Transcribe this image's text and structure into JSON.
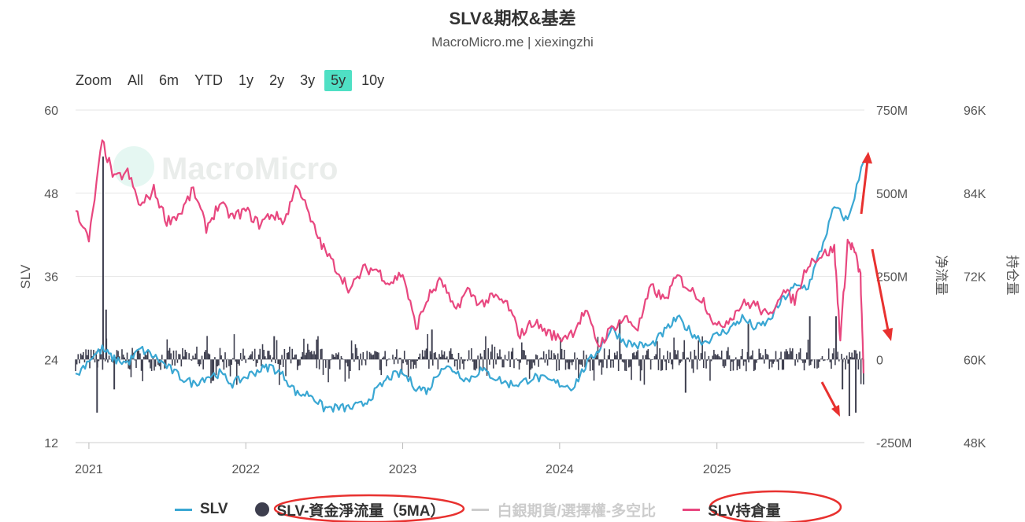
{
  "title": "SLV&期权&基差",
  "subtitle": "MacroMicro.me | xiexingzhi",
  "watermark": "MacroMicro",
  "zoom": {
    "label": "Zoom",
    "buttons": [
      "All",
      "6m",
      "YTD",
      "1y",
      "2y",
      "3y",
      "5y",
      "10y"
    ],
    "active": "5y"
  },
  "legend": [
    {
      "name": "SLV",
      "color": "#3aa7d3",
      "kind": "line",
      "visible": true
    },
    {
      "name": "SLV-資金淨流量（5MA）",
      "color": "#3d3e4e",
      "kind": "dot",
      "visible": true
    },
    {
      "name": "白銀期貨/選擇權-多空比",
      "color": "#cccccc",
      "kind": "line",
      "visible": false
    },
    {
      "name": "SLV持倉量",
      "color": "#e8477f",
      "kind": "line",
      "visible": true
    }
  ],
  "chart_data": {
    "type": "line",
    "x_labels": [
      "2021",
      "2022",
      "2023",
      "2024",
      "2025"
    ],
    "x_range": [
      "2020-12-01",
      "2025-12-10"
    ],
    "axes": {
      "slv": {
        "label": "SLV",
        "ticks": [
          "12",
          "24",
          "36",
          "48",
          "60"
        ],
        "range": [
          12,
          60
        ]
      },
      "flow": {
        "label": "净流量",
        "ticks": [
          "-250M",
          "0",
          "250M",
          "500M",
          "750M"
        ],
        "range": [
          -250,
          750
        ],
        "unit": "M"
      },
      "holdings": {
        "label": "持仓量",
        "ticks": [
          "48K",
          "60K",
          "72K",
          "84K",
          "96K"
        ],
        "range": [
          48,
          96
        ],
        "unit": "K"
      }
    },
    "grid": true,
    "legend_position": "bottom",
    "series": [
      {
        "name": "SLV",
        "axis": "slv",
        "color": "#3aa7d3",
        "x": [
          "2020-12-01",
          "2021-01-01",
          "2021-02-01",
          "2021-03-01",
          "2021-04-01",
          "2021-05-01",
          "2021-06-01",
          "2021-07-01",
          "2021-08-01",
          "2021-09-01",
          "2021-10-01",
          "2021-11-01",
          "2021-12-01",
          "2022-01-01",
          "2022-02-01",
          "2022-03-01",
          "2022-04-01",
          "2022-05-01",
          "2022-06-01",
          "2022-07-01",
          "2022-08-01",
          "2022-09-01",
          "2022-10-01",
          "2022-11-01",
          "2022-12-01",
          "2023-01-01",
          "2023-02-01",
          "2023-03-01",
          "2023-04-01",
          "2023-05-01",
          "2023-06-01",
          "2023-07-01",
          "2023-08-01",
          "2023-09-01",
          "2023-10-01",
          "2023-11-01",
          "2023-12-01",
          "2024-01-01",
          "2024-02-01",
          "2024-03-01",
          "2024-04-01",
          "2024-05-01",
          "2024-06-01",
          "2024-07-01",
          "2024-08-01",
          "2024-09-01",
          "2024-10-01",
          "2024-11-01",
          "2024-12-01",
          "2025-01-01",
          "2025-02-01",
          "2025-03-01",
          "2025-04-01",
          "2025-05-01",
          "2025-06-01",
          "2025-07-01",
          "2025-08-01",
          "2025-09-01",
          "2025-10-01",
          "2025-11-01",
          "2025-12-08"
        ],
        "y": [
          21.5,
          24,
          25.5,
          24,
          23.5,
          25.5,
          24.5,
          23,
          21.5,
          20.5,
          21.5,
          22,
          20.5,
          21.5,
          22.5,
          23,
          21.5,
          19,
          19,
          17,
          17,
          17,
          17.5,
          19.5,
          21.5,
          22,
          20,
          19.5,
          23,
          22.5,
          21,
          22.5,
          21.5,
          20.5,
          20.5,
          21.5,
          21,
          20.5,
          20,
          23,
          25.5,
          28.5,
          26.5,
          26,
          26,
          28,
          30,
          28,
          26.5,
          27.5,
          28.5,
          30,
          28.5,
          29.5,
          32.5,
          34.5,
          34.5,
          40,
          46,
          44,
          52.5
        ]
      },
      {
        "name": "SLV持倉量",
        "axis": "holdings",
        "color": "#e8477f",
        "x": [
          "2020-12-01",
          "2021-01-01",
          "2021-02-01",
          "2021-03-01",
          "2021-04-01",
          "2021-05-01",
          "2021-06-01",
          "2021-07-01",
          "2021-08-01",
          "2021-09-01",
          "2021-10-01",
          "2021-11-01",
          "2021-12-01",
          "2022-01-01",
          "2022-02-01",
          "2022-03-01",
          "2022-04-01",
          "2022-05-01",
          "2022-06-01",
          "2022-07-01",
          "2022-08-01",
          "2022-09-01",
          "2022-10-01",
          "2022-11-01",
          "2022-12-01",
          "2023-01-01",
          "2023-02-01",
          "2023-03-01",
          "2023-04-01",
          "2023-05-01",
          "2023-06-01",
          "2023-07-01",
          "2023-08-01",
          "2023-09-01",
          "2023-10-01",
          "2023-11-01",
          "2023-12-01",
          "2024-01-01",
          "2024-02-01",
          "2024-03-01",
          "2024-04-01",
          "2024-05-01",
          "2024-06-01",
          "2024-07-01",
          "2024-08-01",
          "2024-09-01",
          "2024-10-01",
          "2024-11-01",
          "2024-12-01",
          "2025-01-01",
          "2025-02-01",
          "2025-03-01",
          "2025-04-01",
          "2025-05-01",
          "2025-06-01",
          "2025-07-01",
          "2025-08-01",
          "2025-09-01",
          "2025-10-01",
          "2025-10-15",
          "2025-11-01",
          "2025-11-15",
          "2025-12-01",
          "2025-12-08"
        ],
        "y": [
          82,
          77,
          91.5,
          86,
          87,
          82,
          84.5,
          80,
          81,
          84.5,
          79,
          82.5,
          80.5,
          81.5,
          79.5,
          81,
          80,
          85.5,
          80,
          76,
          73,
          70,
          73,
          73,
          71,
          72.5,
          64.5,
          69,
          71.5,
          67,
          70,
          68,
          69,
          68,
          63.5,
          65.5,
          64,
          63,
          64,
          67,
          62,
          64.5,
          66,
          64.5,
          70.5,
          68.5,
          72,
          70,
          68.5,
          64.5,
          66,
          68,
          68,
          66,
          70,
          68.5,
          74,
          75,
          76,
          63,
          77,
          76,
          72,
          58
        ]
      }
    ],
    "bar_series": {
      "name": "SLV-資金淨流量（5MA）",
      "axis": "flow",
      "color": "#3d3e4e",
      "spikes": [
        {
          "x": "2021-01-20",
          "y": -160
        },
        {
          "x": "2021-02-03",
          "y": 610
        },
        {
          "x": "2021-02-10",
          "y": 150
        },
        {
          "x": "2021-03-01",
          "y": -90
        },
        {
          "x": "2022-03-08",
          "y": 70
        },
        {
          "x": "2022-06-15",
          "y": 60
        },
        {
          "x": "2023-03-10",
          "y": 90
        },
        {
          "x": "2024-05-20",
          "y": 120
        },
        {
          "x": "2024-10-20",
          "y": -100
        },
        {
          "x": "2025-03-15",
          "y": 110
        },
        {
          "x": "2025-08-05",
          "y": 130
        },
        {
          "x": "2025-10-05",
          "y": 130
        },
        {
          "x": "2025-10-20",
          "y": -90
        },
        {
          "x": "2025-11-05",
          "y": -170
        },
        {
          "x": "2025-11-20",
          "y": -160
        }
      ]
    }
  }
}
